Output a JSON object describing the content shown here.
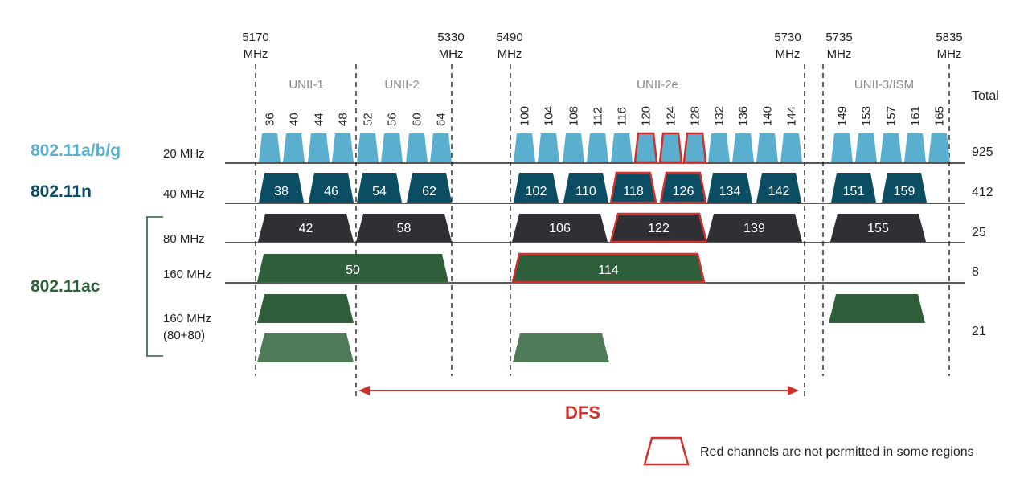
{
  "colors": {
    "c20": "#5aafcf",
    "c40": "#0b4d63",
    "c80": "#2e3033",
    "c160": "#2e5e3a",
    "c8080b": "#4e7a58",
    "red": "#d4302b",
    "text": "#222222",
    "band": "#8a8a8a",
    "std_ag": "#5aafcf",
    "std_n": "#0b4d63",
    "std_ac": "#2e5e3a"
  },
  "frequencies": [
    {
      "value": "5170",
      "unit": "MHz"
    },
    {
      "value": "5330",
      "unit": "MHz"
    },
    {
      "value": "5490",
      "unit": "MHz"
    },
    {
      "value": "5730",
      "unit": "MHz"
    },
    {
      "value": "5735",
      "unit": "MHz"
    },
    {
      "value": "5835",
      "unit": "MHz"
    }
  ],
  "bands": [
    "UNII-1",
    "UNII-2",
    "UNII-2e",
    "UNII-3/ISM"
  ],
  "total_label": "Total",
  "standards": {
    "ag": "802.11a/b/g",
    "n": "802.11n",
    "ac": "802.11ac"
  },
  "widths": {
    "w20": "20 MHz",
    "w40": "40 MHz",
    "w80": "80 MHz",
    "w160": "160 MHz",
    "w8080a": "160 MHz",
    "w8080b": "(80+80)"
  },
  "totals": {
    "t20": "925",
    "t40": "412",
    "t80": "25",
    "t160": "8",
    "t8080": "21"
  },
  "channels20": [
    {
      "ch": "36",
      "red": false
    },
    {
      "ch": "40",
      "red": false
    },
    {
      "ch": "44",
      "red": false
    },
    {
      "ch": "48",
      "red": false
    },
    {
      "ch": "52",
      "red": false
    },
    {
      "ch": "56",
      "red": false
    },
    {
      "ch": "60",
      "red": false
    },
    {
      "ch": "64",
      "red": false
    },
    {
      "ch": "100",
      "red": false
    },
    {
      "ch": "104",
      "red": false
    },
    {
      "ch": "108",
      "red": false
    },
    {
      "ch": "112",
      "red": false
    },
    {
      "ch": "116",
      "red": false
    },
    {
      "ch": "120",
      "red": true
    },
    {
      "ch": "124",
      "red": true
    },
    {
      "ch": "128",
      "red": true
    },
    {
      "ch": "132",
      "red": false
    },
    {
      "ch": "136",
      "red": false
    },
    {
      "ch": "140",
      "red": false
    },
    {
      "ch": "144",
      "red": false
    },
    {
      "ch": "149",
      "red": false
    },
    {
      "ch": "153",
      "red": false
    },
    {
      "ch": "157",
      "red": false
    },
    {
      "ch": "161",
      "red": false
    },
    {
      "ch": "165",
      "red": false
    }
  ],
  "channels40": [
    {
      "ch": "38",
      "red": false
    },
    {
      "ch": "46",
      "red": false
    },
    {
      "ch": "54",
      "red": false
    },
    {
      "ch": "62",
      "red": false
    },
    {
      "ch": "102",
      "red": false
    },
    {
      "ch": "110",
      "red": false
    },
    {
      "ch": "118",
      "red": true
    },
    {
      "ch": "126",
      "red": true
    },
    {
      "ch": "134",
      "red": false
    },
    {
      "ch": "142",
      "red": false
    },
    {
      "ch": "151",
      "red": false
    },
    {
      "ch": "159",
      "red": false
    }
  ],
  "channels80": [
    {
      "ch": "42",
      "red": false
    },
    {
      "ch": "58",
      "red": false
    },
    {
      "ch": "106",
      "red": false
    },
    {
      "ch": "122",
      "red": true
    },
    {
      "ch": "139",
      "red": false
    },
    {
      "ch": "155",
      "red": false
    }
  ],
  "channels160": [
    {
      "ch": "50",
      "red": false
    },
    {
      "ch": "114",
      "red": true
    }
  ],
  "dfs_label": "DFS",
  "legend_text": "Red channels are not permitted in some regions"
}
